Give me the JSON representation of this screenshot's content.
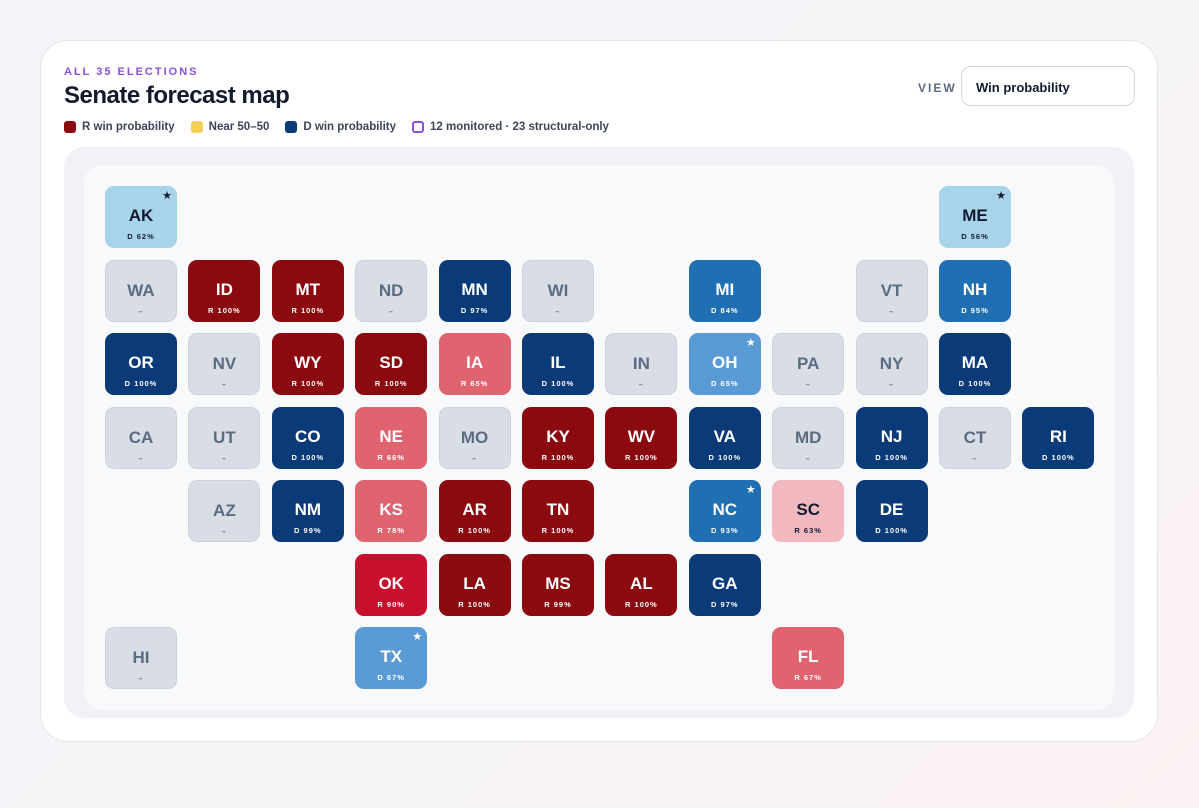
{
  "header": {
    "kicker": "ALL 35 ELECTIONS",
    "title": "Senate forecast map"
  },
  "view": {
    "label": "VIEW",
    "value": "Win probability"
  },
  "legend": [
    "R win probability",
    "Near 50–50",
    "D win probability",
    "12 monitored · 23 structural-only"
  ],
  "tiles": [
    {
      "state": "AK",
      "label": "D 62%"
    },
    {
      "state": "ME",
      "label": "D 56%"
    },
    {
      "state": "WA",
      "label": "–"
    },
    {
      "state": "ID",
      "label": "R 100%"
    },
    {
      "state": "MT",
      "label": "R 100%"
    },
    {
      "state": "ND",
      "label": "–"
    },
    {
      "state": "MN",
      "label": "D 97%"
    },
    {
      "state": "WI",
      "label": "–"
    },
    {
      "state": "MI",
      "label": "D 84%"
    },
    {
      "state": "VT",
      "label": "–"
    },
    {
      "state": "NH",
      "label": "D 95%"
    },
    {
      "state": "OR",
      "label": "D 100%"
    },
    {
      "state": "NV",
      "label": "–"
    },
    {
      "state": "WY",
      "label": "R 100%"
    },
    {
      "state": "SD",
      "label": "R 100%"
    },
    {
      "state": "IA",
      "label": "R 65%"
    },
    {
      "state": "IL",
      "label": "D 100%"
    },
    {
      "state": "IN",
      "label": "–"
    },
    {
      "state": "OH",
      "label": "D 65%"
    },
    {
      "state": "PA",
      "label": "–"
    },
    {
      "state": "NY",
      "label": "–"
    },
    {
      "state": "MA",
      "label": "D 100%"
    },
    {
      "state": "CA",
      "label": "–"
    },
    {
      "state": "UT",
      "label": "–"
    },
    {
      "state": "CO",
      "label": "D 100%"
    },
    {
      "state": "NE",
      "label": "R 66%"
    },
    {
      "state": "MO",
      "label": "–"
    },
    {
      "state": "KY",
      "label": "R 100%"
    },
    {
      "state": "WV",
      "label": "R 100%"
    },
    {
      "state": "VA",
      "label": "D 100%"
    },
    {
      "state": "MD",
      "label": "–"
    },
    {
      "state": "NJ",
      "label": "D 100%"
    },
    {
      "state": "CT",
      "label": "–"
    },
    {
      "state": "RI",
      "label": "D 100%"
    },
    {
      "state": "AZ",
      "label": "–"
    },
    {
      "state": "NM",
      "label": "D 99%"
    },
    {
      "state": "KS",
      "label": "R 78%"
    },
    {
      "state": "AR",
      "label": "R 100%"
    },
    {
      "state": "TN",
      "label": "R 100%"
    },
    {
      "state": "NC",
      "label": "D 93%"
    },
    {
      "state": "SC",
      "label": "R 63%"
    },
    {
      "state": "DE",
      "label": "D 100%"
    },
    {
      "state": "OK",
      "label": "R 90%"
    },
    {
      "state": "LA",
      "label": "R 100%"
    },
    {
      "state": "MS",
      "label": "R 99%"
    },
    {
      "state": "AL",
      "label": "R 100%"
    },
    {
      "state": "GA",
      "label": "D 97%"
    },
    {
      "state": "HI",
      "label": "–"
    },
    {
      "state": "TX",
      "label": "D 67%"
    },
    {
      "state": "FL",
      "label": "R 67%"
    }
  ]
}
